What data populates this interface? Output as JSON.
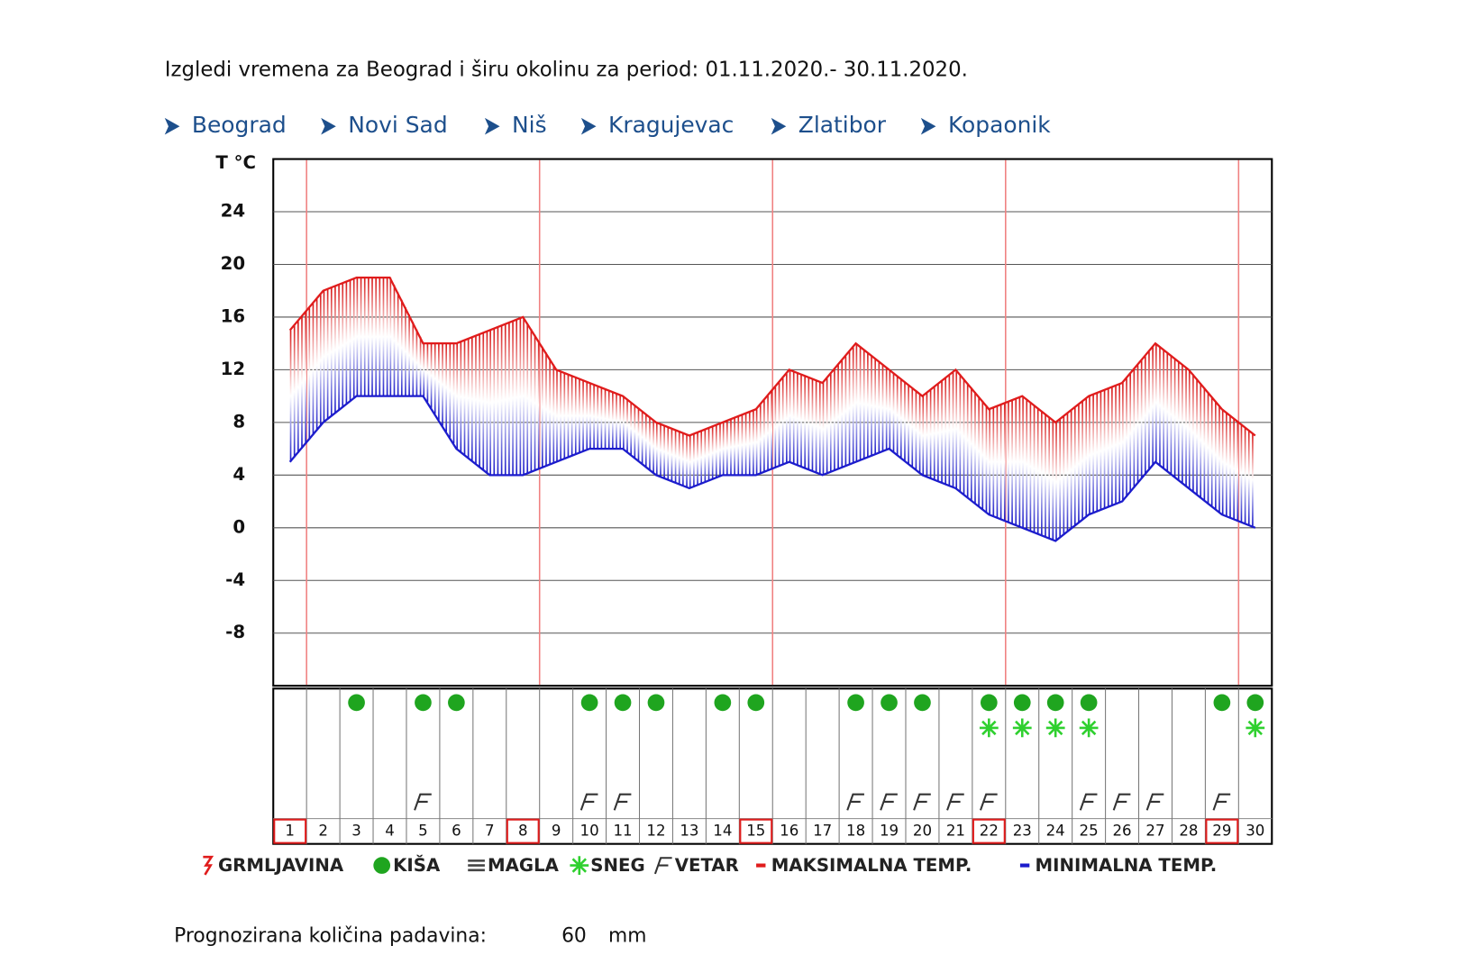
{
  "header": {
    "title": "Izgledi vremena za Beograd i širu okolinu za period: 01.11.2020.- 30.11.2020."
  },
  "links": [
    "Beograd",
    "Novi Sad",
    "Niš",
    "Kragujevac",
    "Zlatibor",
    "Kopaonik"
  ],
  "precipitation": {
    "label": "Prognozirana količina padavina:",
    "value": 60,
    "unit": "mm"
  },
  "chart_data": {
    "type": "line",
    "y_label": "T °C",
    "categories": [
      "1",
      "2",
      "3",
      "4",
      "5",
      "6",
      "7",
      "8",
      "9",
      "10",
      "11",
      "12",
      "13",
      "14",
      "15",
      "16",
      "17",
      "18",
      "19",
      "20",
      "21",
      "22",
      "23",
      "24",
      "25",
      "26",
      "27",
      "28",
      "29",
      "30"
    ],
    "series": [
      {
        "name": "MAKSIMALNA TEMP.",
        "color": "#e01c1c",
        "values": [
          15,
          18,
          19,
          19,
          14,
          14,
          15,
          16,
          12,
          11,
          10,
          8,
          7,
          8,
          9,
          12,
          11,
          14,
          12,
          10,
          12,
          9,
          10,
          8,
          10,
          11,
          14,
          12,
          9,
          7
        ]
      },
      {
        "name": "MINIMALNA TEMP.",
        "color": "#1c1ccc",
        "values": [
          5,
          8,
          10,
          10,
          10,
          6,
          4,
          4,
          5,
          6,
          6,
          4,
          3,
          4,
          4,
          5,
          4,
          5,
          6,
          4,
          3,
          1,
          0,
          -1,
          1,
          2,
          5,
          3,
          1,
          0
        ]
      }
    ],
    "symbols": [
      {
        "name": "GRMLJAVINA",
        "color": "#e01c1c",
        "days": []
      },
      {
        "name": "KIŠA",
        "color": "#1fa51f",
        "days": [
          3,
          5,
          6,
          10,
          11,
          12,
          14,
          15,
          18,
          19,
          20,
          22,
          23,
          24,
          25,
          29,
          30
        ]
      },
      {
        "name": "MAGLA",
        "color": "#444444",
        "days": []
      },
      {
        "name": "SNEG",
        "color": "#2fd02f",
        "days": [
          22,
          23,
          24,
          25,
          30
        ]
      },
      {
        "name": "VETAR",
        "color": "#333333",
        "days": [
          5,
          10,
          11,
          18,
          19,
          20,
          21,
          22,
          25,
          26,
          27,
          29
        ]
      }
    ],
    "highlighted_days": [
      1,
      8,
      15,
      22,
      29
    ],
    "ylim": [
      -12,
      28
    ],
    "yticks": [
      24,
      20,
      16,
      12,
      8,
      4,
      0,
      -4,
      -8
    ],
    "grid": true
  }
}
